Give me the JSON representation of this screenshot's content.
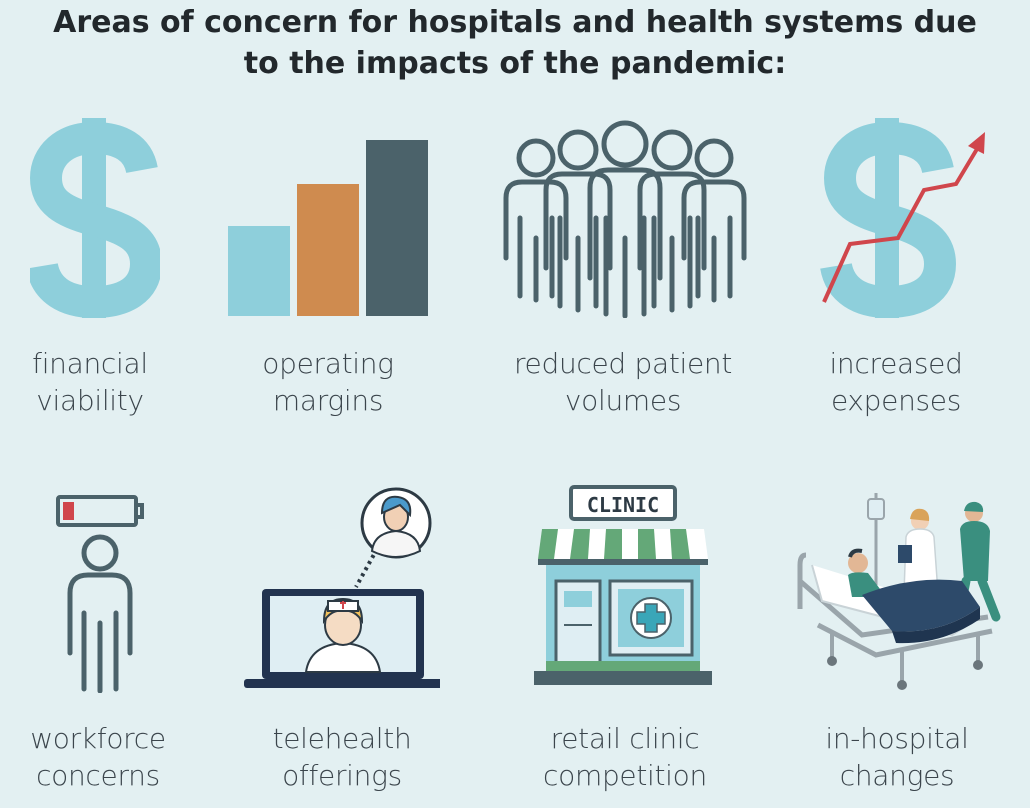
{
  "title": {
    "line1": "Areas of concern for hospitals and health systems due",
    "line2": "to the impacts of the pandemic:"
  },
  "colors": {
    "background": "#e3f0f2",
    "light_blue": "#8ecfdb",
    "orange": "#cf8b4f",
    "slate": "#4b626a",
    "red": "#d0464c",
    "green": "#64a878"
  },
  "items": [
    {
      "icon": "dollar-icon",
      "line1": "financial",
      "line2": "viability"
    },
    {
      "icon": "bar-chart-icon",
      "line1": "operating",
      "line2": "margins"
    },
    {
      "icon": "people-group-icon",
      "line1": "reduced patient",
      "line2": "volumes"
    },
    {
      "icon": "dollar-trend-up-icon",
      "line1": "increased",
      "line2": "expenses"
    },
    {
      "icon": "low-battery-person-icon",
      "line1": "workforce",
      "line2": "concerns"
    },
    {
      "icon": "laptop-doctor-icon",
      "line1": "telehealth",
      "line2": "offerings"
    },
    {
      "icon": "clinic-storefront-icon",
      "sign": "CLINIC",
      "line1": "retail clinic",
      "line2": "competition"
    },
    {
      "icon": "hospital-bed-icon",
      "line1": "in-hospital",
      "line2": "changes"
    }
  ]
}
